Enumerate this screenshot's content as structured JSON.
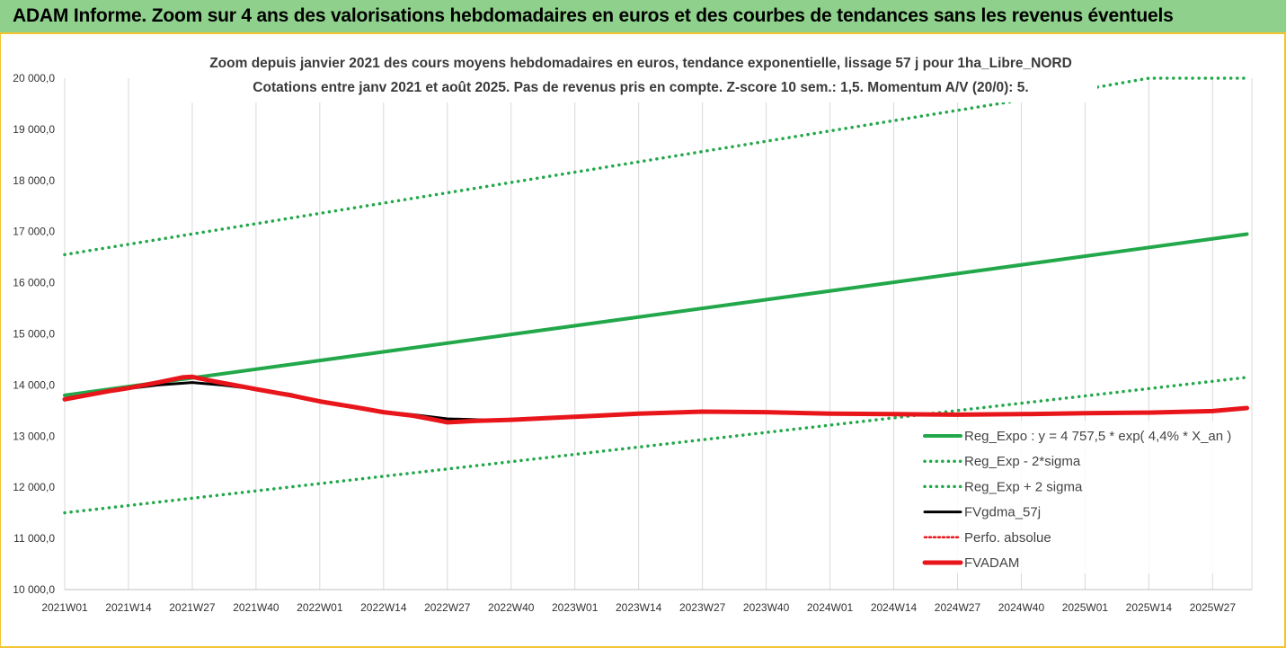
{
  "banner": {
    "text": "ADAM Informe. Zoom sur 4 ans des valorisations hebdomadaires en euros et des courbes de tendances sans les revenus éventuels"
  },
  "colors": {
    "banner_bg": "#8fd18c",
    "frame_border": "#f4c430",
    "trend_green": "#22a84a",
    "black_series": "#000000",
    "red_series": "#e8151b"
  },
  "chart_data": {
    "type": "line",
    "title_lines": [
      "Zoom depuis janvier 2021 des cours moyens hebdomadaires en euros, tendance exponentielle, lissage 57 j pour 1ha_Libre_NORD",
      "Cotations entre janv 2021 et août 2025.  Pas de revenus pris en compte. Z-score 10 sem.: 1,5. Momentum A/V (20/0): 5."
    ],
    "xlabel": "",
    "ylabel": "",
    "ylim": [
      10000,
      20000
    ],
    "y_ticks": [
      "10 000,0",
      "11 000,0",
      "12 000,0",
      "13 000,0",
      "14 000,0",
      "15 000,0",
      "16 000,0",
      "17 000,0",
      "18 000,0",
      "19 000,0",
      "20 000,0"
    ],
    "x_ticks": [
      "2021W01",
      "2021W14",
      "2021W27",
      "2021W40",
      "2022W01",
      "2022W14",
      "2022W27",
      "2022W40",
      "2023W01",
      "2023W14",
      "2023W27",
      "2023W40",
      "2024W01",
      "2024W14",
      "2024W27",
      "2024W40",
      "2025W01",
      "2025W14",
      "2025W27"
    ],
    "grid": "vertical",
    "legend_position": "bottom-right",
    "series": [
      {
        "name": "Reg_Expo : y = 4 757,5 * exp( 4,4% *  X_an )",
        "style": "solid",
        "color": "#22a84a",
        "points": [
          [
            "2021W01",
            13800
          ],
          [
            "2025W34",
            16950
          ]
        ]
      },
      {
        "name": "Reg_Exp - 2*sigma",
        "style": "dotted",
        "color": "#22a84a",
        "points": [
          [
            "2021W01",
            11500
          ],
          [
            "2025W34",
            14150
          ]
        ]
      },
      {
        "name": "Reg_Exp + 2 sigma",
        "style": "dotted",
        "color": "#22a84a",
        "points": [
          [
            "2021W01",
            16550
          ],
          [
            "2024W45",
            19650
          ],
          [
            "2025W14",
            20000
          ],
          [
            "2025W34",
            20000
          ]
        ]
      },
      {
        "name": "FVgdma_57j",
        "style": "solid",
        "color": "#000000",
        "points": [
          [
            "2021W01",
            13720
          ],
          [
            "2021W14",
            13930
          ],
          [
            "2021W20",
            14000
          ],
          [
            "2021W27",
            14050
          ],
          [
            "2021W33",
            14000
          ],
          [
            "2021W40",
            13920
          ],
          [
            "2021W47",
            13820
          ],
          [
            "2022W01",
            13680
          ],
          [
            "2022W08",
            13580
          ],
          [
            "2022W14",
            13480
          ],
          [
            "2022W20",
            13420
          ],
          [
            "2022W27",
            13340
          ],
          [
            "2022W34",
            13320
          ],
          [
            "2022W40",
            13320
          ]
        ]
      },
      {
        "name": "Perfo. absolue",
        "style": "dotted",
        "color": "#e8151b",
        "points": []
      },
      {
        "name": "FVADAM",
        "style": "solid",
        "color": "#e8151b",
        "points": [
          [
            "2021W01",
            13720
          ],
          [
            "2021W10",
            13880
          ],
          [
            "2021W14",
            13940
          ],
          [
            "2021W20",
            14050
          ],
          [
            "2021W25",
            14150
          ],
          [
            "2021W27",
            14160
          ],
          [
            "2021W31",
            14080
          ],
          [
            "2021W40",
            13920
          ],
          [
            "2021W47",
            13800
          ],
          [
            "2022W01",
            13680
          ],
          [
            "2022W08",
            13570
          ],
          [
            "2022W14",
            13470
          ],
          [
            "2022W20",
            13400
          ],
          [
            "2022W25",
            13310
          ],
          [
            "2022W27",
            13270
          ],
          [
            "2022W33",
            13300
          ],
          [
            "2022W40",
            13320
          ],
          [
            "2023W01",
            13380
          ],
          [
            "2023W14",
            13440
          ],
          [
            "2023W27",
            13480
          ],
          [
            "2023W40",
            13470
          ],
          [
            "2024W01",
            13440
          ],
          [
            "2024W14",
            13430
          ],
          [
            "2024W27",
            13420
          ],
          [
            "2024W40",
            13430
          ],
          [
            "2025W01",
            13450
          ],
          [
            "2025W14",
            13460
          ],
          [
            "2025W27",
            13490
          ],
          [
            "2025W34",
            13550
          ]
        ]
      }
    ]
  }
}
